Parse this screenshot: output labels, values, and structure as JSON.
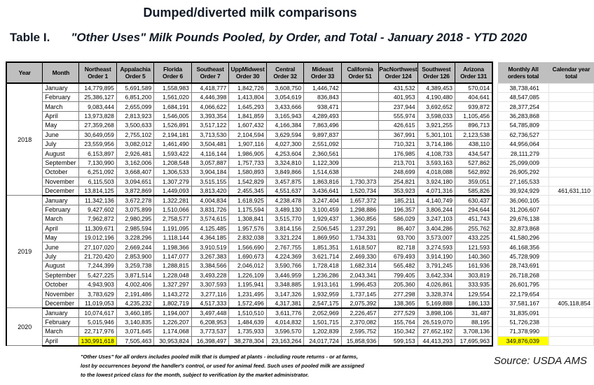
{
  "title": "Dumped/diverted milk comparisons",
  "table_label": "Table I.",
  "subtitle": "\"Other Uses\" Milk Pounds Pooled, by Order, and Total - January 2018 - YTD 2020",
  "colors": {
    "header_bg": "#bfbfbf",
    "highlight": "#ffff00",
    "grid": "#7f7f7f",
    "border_dark": "#000000"
  },
  "columns": {
    "year": "Year",
    "month": "Month",
    "orders": [
      {
        "name": "Northeast",
        "order": "Order 1"
      },
      {
        "name": "Appalachia",
        "order": "Order 5"
      },
      {
        "name": "Florida",
        "order": "Order 6"
      },
      {
        "name": "Southeast",
        "order": "Order 7"
      },
      {
        "name": "UppMidwest",
        "order": "Order 30"
      },
      {
        "name": "Central",
        "order": "Order 32"
      },
      {
        "name": "Mideast",
        "order": "Order 33"
      },
      {
        "name": "California",
        "order": "Order 51"
      },
      {
        "name": "PacNorthwest",
        "order": "Order 124"
      },
      {
        "name": "Southwest",
        "order": "Order 126"
      },
      {
        "name": "Arizona",
        "order": "Order 131"
      }
    ],
    "monthly_total": {
      "line1": "Monthly All",
      "line2": "orders total"
    },
    "calendar_total": {
      "line1": "Calendar year",
      "line2": "total"
    }
  },
  "year_groups": [
    {
      "year": "2018",
      "rows": [
        {
          "month": "January",
          "values": [
            "14,779,895",
            "5,691,589",
            "1,558,983",
            "4,418,777",
            "1,842,726",
            "3,608,750",
            "1,446,742",
            "",
            "431,532",
            "4,389,453",
            "570,014"
          ],
          "monthly": "38,738,461",
          "calendar": ""
        },
        {
          "month": "February",
          "values": [
            "25,386,127",
            "6,851,200",
            "1,561,020",
            "4,446,398",
            "1,413,804",
            "3,054,619",
            "836,843",
            "",
            "401,953",
            "4,190,480",
            "404,641"
          ],
          "monthly": "48,547,085",
          "calendar": ""
        },
        {
          "month": "March",
          "values": [
            "9,083,444",
            "2,655,099",
            "1,684,191",
            "4,066,622",
            "1,645,293",
            "3,433,666",
            "938,471",
            "",
            "237,944",
            "3,692,652",
            "939,872"
          ],
          "monthly": "28,377,254",
          "calendar": ""
        },
        {
          "month": "April",
          "values": [
            "13,973,828",
            "2,813,923",
            "1,546,005",
            "3,393,354",
            "1,841,859",
            "3,165,943",
            "4,289,493",
            "",
            "555,974",
            "3,598,033",
            "1,105,456"
          ],
          "monthly": "36,283,868",
          "calendar": ""
        },
        {
          "month": "May",
          "values": [
            "27,359,268",
            "3,500,633",
            "1,526,891",
            "3,517,122",
            "1,607,432",
            "4,166,384",
            "7,863,496",
            "",
            "426,615",
            "3,921,255",
            "896,713"
          ],
          "monthly": "54,785,809",
          "calendar": ""
        },
        {
          "month": "June",
          "values": [
            "30,649,059",
            "2,755,102",
            "2,194,181",
            "3,713,530",
            "2,104,594",
            "3,629,594",
            "9,897,837",
            "",
            "367,991",
            "5,301,101",
            "2,123,538"
          ],
          "monthly": "62,736,527",
          "calendar": ""
        },
        {
          "month": "July",
          "values": [
            "23,559,956",
            "3,082,012",
            "1,461,490",
            "3,504,481",
            "1,907,116",
            "4,027,300",
            "2,551,092",
            "",
            "710,321",
            "3,714,186",
            "438,110"
          ],
          "monthly": "44,956,064",
          "calendar": ""
        },
        {
          "month": "August",
          "values": [
            "6,153,897",
            "2,926,481",
            "1,593,422",
            "4,116,144",
            "1,986,905",
            "4,253,604",
            "2,360,561",
            "",
            "176,985",
            "4,108,733",
            "434,547"
          ],
          "monthly": "28,111,279",
          "calendar": ""
        },
        {
          "month": "September",
          "values": [
            "7,130,990",
            "3,162,006",
            "1,208,548",
            "3,057,887",
            "1,757,733",
            "3,324,810",
            "1,122,309",
            "",
            "213,701",
            "3,593,163",
            "527,862"
          ],
          "monthly": "25,099,009",
          "calendar": ""
        },
        {
          "month": "October",
          "values": [
            "6,251,092",
            "3,668,407",
            "1,306,533",
            "3,904,184",
            "1,580,893",
            "3,849,866",
            "1,514,638",
            "",
            "248,699",
            "4,018,088",
            "562,892"
          ],
          "monthly": "26,905,292",
          "calendar": ""
        },
        {
          "month": "November",
          "values": [
            "6,115,503",
            "3,094,651",
            "1,307,279",
            "3,515,155",
            "1,542,829",
            "3,457,875",
            "1,863,816",
            "1,730,373",
            "254,821",
            "3,924,180",
            "359,051"
          ],
          "monthly": "27,165,533",
          "calendar": ""
        },
        {
          "month": "December",
          "values": [
            "13,814,125",
            "3,872,869",
            "1,449,093",
            "3,813,420",
            "2,455,345",
            "4,551,637",
            "3,436,641",
            "1,520,734",
            "353,923",
            "4,071,316",
            "585,826"
          ],
          "monthly": "39,924,929",
          "calendar": "461,631,110"
        }
      ]
    },
    {
      "year": "2019",
      "rows": [
        {
          "month": "January",
          "values": [
            "11,342,136",
            "3,672,278",
            "1,322,281",
            "4,004,834",
            "1,618,925",
            "4,238,478",
            "3,247,404",
            "1,657,372",
            "185,211",
            "4,140,749",
            "630,437"
          ],
          "monthly": "36,060,105",
          "calendar": ""
        },
        {
          "month": "February",
          "values": [
            "9,427,602",
            "3,075,899",
            "1,510,066",
            "3,831,726",
            "1,175,594",
            "3,489,130",
            "3,100,459",
            "1,298,886",
            "196,357",
            "3,806,244",
            "294,644"
          ],
          "monthly": "31,206,607",
          "calendar": ""
        },
        {
          "month": "March",
          "values": [
            "7,962,872",
            "2,980,295",
            "2,758,577",
            "3,574,615",
            "1,308,841",
            "3,515,770",
            "1,929,437",
            "1,360,856",
            "586,029",
            "3,247,103",
            "451,743"
          ],
          "monthly": "29,676,138",
          "calendar": ""
        },
        {
          "month": "April",
          "values": [
            "11,309,671",
            "2,985,594",
            "1,191,095",
            "4,125,485",
            "1,957,576",
            "3,814,156",
            "2,506,545",
            "1,237,291",
            "86,407",
            "3,404,286",
            "255,762"
          ],
          "monthly": "32,873,868",
          "calendar": ""
        },
        {
          "month": "May",
          "values": [
            "19,012,196",
            "3,228,296",
            "1,118,144",
            "4,364,185",
            "2,832,038",
            "3,321,224",
            "1,869,950",
            "1,734,331",
            "93,700",
            "3,573,007",
            "433,225"
          ],
          "monthly": "41,580,296",
          "calendar": ""
        },
        {
          "month": "June",
          "values": [
            "27,107,020",
            "2,669,244",
            "1,198,366",
            "3,910,519",
            "1,566,690",
            "2,767,755",
            "1,851,351",
            "1,618,507",
            "82,718",
            "3,274,593",
            "121,593"
          ],
          "monthly": "46,168,356",
          "calendar": ""
        },
        {
          "month": "July",
          "values": [
            "21,720,420",
            "2,853,900",
            "1,147,077",
            "3,267,383",
            "1,690,673",
            "4,224,369",
            "3,621,714",
            "2,469,330",
            "679,493",
            "3,914,190",
            "140,360"
          ],
          "monthly": "45,728,909",
          "calendar": ""
        },
        {
          "month": "August",
          "values": [
            "7,244,399",
            "3,259,738",
            "1,288,815",
            "3,384,566",
            "2,046,012",
            "3,590,766",
            "1,728,418",
            "1,682,314",
            "565,482",
            "3,791,245",
            "161,936"
          ],
          "monthly": "28,743,691",
          "calendar": ""
        },
        {
          "month": "September",
          "values": [
            "5,427,225",
            "3,871,514",
            "1,228,048",
            "3,493,228",
            "1,226,109",
            "3,446,959",
            "1,236,286",
            "2,043,341",
            "799,405",
            "3,642,334",
            "303,819"
          ],
          "monthly": "26,718,268",
          "calendar": ""
        },
        {
          "month": "October",
          "values": [
            "4,943,903",
            "4,002,406",
            "1,327,297",
            "3,307,593",
            "1,195,941",
            "3,348,885",
            "1,913,161",
            "1,996,453",
            "205,360",
            "4,026,861",
            "333,935"
          ],
          "monthly": "26,601,795",
          "calendar": ""
        },
        {
          "month": "November",
          "values": [
            "3,783,629",
            "2,191,486",
            "1,143,272",
            "3,277,116",
            "1,231,495",
            "3,147,326",
            "1,932,959",
            "1,737,145",
            "277,298",
            "3,328,374",
            "129,554"
          ],
          "monthly": "22,179,654",
          "calendar": ""
        },
        {
          "month": "December",
          "values": [
            "11,019,053",
            "4,235,232",
            "1,802,719",
            "4,517,333",
            "1,572,496",
            "4,317,381",
            "2,547,175",
            "2,075,392",
            "138,365",
            "5,169,888",
            "186,133"
          ],
          "monthly": "37,581,167",
          "calendar": "405,118,854"
        }
      ]
    },
    {
      "year": "2020",
      "rows": [
        {
          "month": "January",
          "values": [
            "10,074,617",
            "3,460,185",
            "1,194,007",
            "3,497,448",
            "1,510,510",
            "3,611,776",
            "2,052,969",
            "2,226,457",
            "277,529",
            "3,898,106",
            "31,487"
          ],
          "monthly": "31,835,091",
          "calendar": ""
        },
        {
          "month": "February",
          "values": [
            "5,015,946",
            "3,140,835",
            "1,226,207",
            "6,208,953",
            "1,484,639",
            "4,014,832",
            "1,501,715",
            "2,370,082",
            "155,764",
            "26,519,070",
            "88,195"
          ],
          "monthly": "51,726,238",
          "calendar": ""
        },
        {
          "month": "March",
          "values": [
            "22,717,976",
            "3,071,645",
            "1,174,068",
            "3,773,537",
            "1,735,933",
            "3,596,570",
            "1,202,839",
            "2,595,752",
            "150,342",
            "27,652,192",
            "3,708,136"
          ],
          "monthly": "71,378,990",
          "calendar": ""
        },
        {
          "month": "April",
          "values": [
            "130,991,618",
            "7,505,463",
            "30,953,824",
            "16,398,497",
            "38,278,304",
            "23,163,264",
            "24,017,724",
            "15,858,936",
            "599,153",
            "44,413,293",
            "17,695,963"
          ],
          "monthly": "349,876,039",
          "calendar": "",
          "highlight_cols": [
            0
          ],
          "highlight_monthly": true
        }
      ]
    }
  ],
  "footnote_lines": [
    "\"Other Uses\" for all orders includes pooled milk that is dumped at plants - including route returns - or at farms,",
    "lost by occurrences beyond the handler's control, or used for animal feed.  Such uses of pooled milk are assigned",
    "to the lowest priced class for the month, subject to verification by the market administrator."
  ],
  "source": "Source: USDA AMS"
}
